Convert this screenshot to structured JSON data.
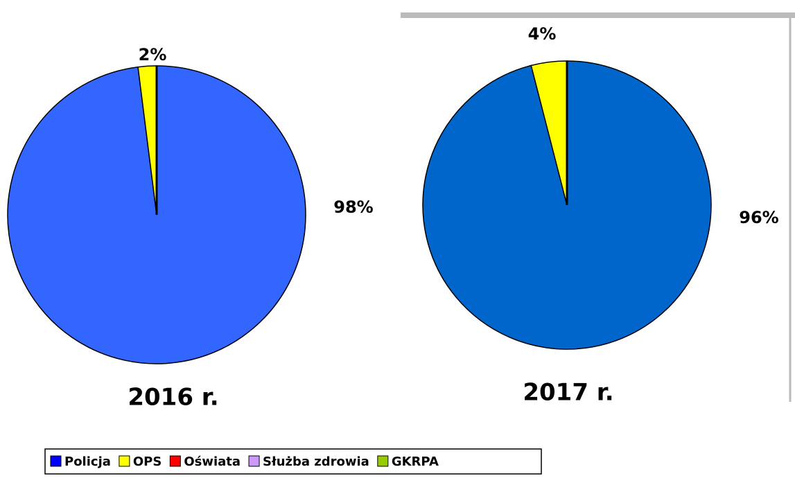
{
  "chart_data": [
    {
      "type": "pie",
      "title": "2016 r.",
      "categories": [
        "Policja",
        "OPS",
        "Oświata",
        "Służba zdrowia",
        "GKRPA"
      ],
      "values": [
        98,
        2,
        0,
        0,
        0
      ],
      "value_labels": [
        "98%",
        "2%",
        null,
        null,
        null
      ],
      "colors": [
        "#3366ff",
        "#ffff00",
        "#ff0000",
        "#cc99ff",
        "#99cc00"
      ]
    },
    {
      "type": "pie",
      "title": "2017 r.",
      "categories": [
        "Policja",
        "OPS",
        "Oświata",
        "Służba zdrowia",
        "GKRPA"
      ],
      "values": [
        96,
        4,
        0,
        0,
        0
      ],
      "value_labels": [
        "96%",
        "4%",
        null,
        null,
        null
      ],
      "colors": [
        "#0066cc",
        "#ffff00",
        "#ff0000",
        "#cc99ff",
        "#99cc00"
      ]
    }
  ],
  "legend": {
    "names": [
      "Policja",
      "OPS",
      "Oświata",
      "Służba zdrowia",
      "GKRPA"
    ],
    "colors": [
      "#0000ff",
      "#ffff00",
      "#ff0000",
      "#cc99ff",
      "#99cc00"
    ]
  }
}
